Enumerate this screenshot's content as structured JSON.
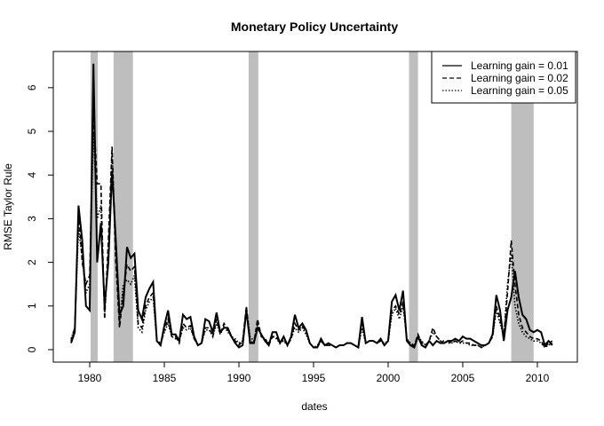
{
  "chart_data": {
    "type": "line",
    "title": "Monetary Policy Uncertainty",
    "x_label": "dates",
    "y_label": "RMSE Taylor Rule",
    "xlim": [
      1977.56,
      2012.68
    ],
    "ylim": [
      -0.285,
      6.83
    ],
    "xticks": [
      1980,
      1985,
      1990,
      1995,
      2000,
      2005,
      2010
    ],
    "yticks": [
      0,
      1,
      2,
      3,
      4,
      5,
      6
    ],
    "legend": "topright",
    "shade_color": "#bebebe",
    "shaded_regions": [
      [
        1980.06,
        1980.54
      ],
      [
        1981.6,
        1982.9
      ],
      [
        1990.65,
        1991.3
      ],
      [
        2001.4,
        2002.0
      ],
      [
        2008.25,
        2009.75
      ]
    ],
    "x": [
      1978.75,
      1979,
      1979.25,
      1979.5,
      1979.75,
      1980,
      1980.25,
      1980.5,
      1980.75,
      1981,
      1981.25,
      1981.5,
      1981.75,
      1982,
      1982.25,
      1982.5,
      1982.75,
      1983,
      1983.25,
      1983.5,
      1983.75,
      1984,
      1984.25,
      1984.5,
      1984.75,
      1985,
      1985.25,
      1985.5,
      1985.75,
      1986,
      1986.25,
      1986.5,
      1986.75,
      1987,
      1987.25,
      1987.5,
      1987.75,
      1988,
      1988.25,
      1988.5,
      1988.75,
      1989,
      1989.25,
      1989.5,
      1989.75,
      1990,
      1990.25,
      1990.5,
      1990.75,
      1991,
      1991.25,
      1991.5,
      1991.75,
      1992,
      1992.25,
      1992.5,
      1992.75,
      1993,
      1993.25,
      1993.5,
      1993.75,
      1994,
      1994.25,
      1994.5,
      1994.75,
      1995,
      1995.25,
      1995.5,
      1995.75,
      1996,
      1996.25,
      1996.5,
      1996.75,
      1997,
      1997.25,
      1997.5,
      1997.75,
      1998,
      1998.25,
      1998.5,
      1998.75,
      1999,
      1999.25,
      1999.5,
      1999.75,
      2000,
      2000.25,
      2000.5,
      2000.75,
      2001,
      2001.25,
      2001.5,
      2001.75,
      2002,
      2002.25,
      2002.5,
      2002.75,
      2003,
      2003.25,
      2003.5,
      2003.75,
      2004,
      2004.25,
      2004.5,
      2004.75,
      2005,
      2005.25,
      2005.5,
      2005.75,
      2006,
      2006.25,
      2006.5,
      2006.75,
      2007,
      2007.25,
      2007.5,
      2007.75,
      2008,
      2008.25,
      2008.5,
      2008.75,
      2009,
      2009.25,
      2009.5,
      2009.75,
      2010,
      2010.25,
      2010.5,
      2010.75,
      2011
    ],
    "series": [
      {
        "name": "Learning gain = 0.01",
        "color": "#000000",
        "dash": "solid",
        "width": 2,
        "values": [
          0.15,
          0.4,
          3.3,
          2.5,
          1.0,
          0.9,
          6.55,
          2.0,
          2.9,
          1.0,
          2.0,
          4.1,
          2.5,
          0.8,
          1.0,
          2.35,
          2.1,
          2.2,
          0.9,
          0.7,
          1.2,
          1.4,
          1.55,
          0.2,
          0.1,
          0.55,
          0.9,
          0.35,
          0.35,
          0.2,
          0.8,
          0.7,
          0.75,
          0.3,
          0.1,
          0.15,
          0.7,
          0.65,
          0.4,
          0.85,
          0.4,
          0.5,
          0.5,
          0.3,
          0.15,
          0.05,
          0.1,
          0.9,
          0.15,
          0.15,
          0.5,
          0.35,
          0.2,
          0.1,
          0.4,
          0.4,
          0.15,
          0.3,
          0.1,
          0.3,
          0.8,
          0.5,
          0.6,
          0.45,
          0.15,
          0.05,
          0.05,
          0.25,
          0.1,
          0.15,
          0.1,
          0.05,
          0.1,
          0.1,
          0.15,
          0.15,
          0.1,
          0.05,
          0.75,
          0.15,
          0.2,
          0.2,
          0.15,
          0.25,
          0.1,
          0.2,
          1.1,
          1.25,
          0.9,
          1.35,
          0.2,
          0.1,
          0.05,
          0.3,
          0.1,
          0.05,
          0.2,
          0.1,
          0.2,
          0.15,
          0.15,
          0.2,
          0.2,
          0.25,
          0.2,
          0.3,
          0.25,
          0.25,
          0.2,
          0.15,
          0.1,
          0.1,
          0.15,
          0.35,
          1.25,
          0.9,
          0.2,
          0.9,
          1.2,
          1.8,
          1.2,
          0.8,
          0.7,
          0.45,
          0.4,
          0.45,
          0.4,
          0.1,
          0.2,
          0.1
        ]
      },
      {
        "name": "Learning gain = 0.02",
        "color": "#000000",
        "dash": "dashed",
        "width": 1.6,
        "values": [
          0.2,
          0.5,
          3.2,
          2.0,
          1.5,
          1.7,
          5.5,
          3.8,
          3.8,
          0.7,
          2.5,
          4.65,
          2.0,
          0.5,
          1.3,
          1.95,
          1.8,
          1.9,
          0.6,
          0.5,
          1.0,
          1.2,
          1.3,
          0.2,
          0.1,
          0.45,
          0.7,
          0.3,
          0.3,
          0.15,
          0.6,
          0.5,
          0.55,
          0.25,
          0.1,
          0.15,
          0.5,
          0.5,
          0.3,
          0.7,
          0.35,
          0.6,
          0.45,
          0.3,
          0.2,
          0.1,
          0.2,
          1.0,
          0.2,
          0.15,
          0.7,
          0.3,
          0.25,
          0.1,
          0.3,
          0.3,
          0.15,
          0.25,
          0.1,
          0.25,
          0.6,
          0.45,
          0.55,
          0.4,
          0.15,
          0.05,
          0.05,
          0.2,
          0.1,
          0.1,
          0.1,
          0.05,
          0.1,
          0.1,
          0.15,
          0.15,
          0.1,
          0.05,
          0.6,
          0.15,
          0.2,
          0.2,
          0.15,
          0.2,
          0.1,
          0.2,
          0.9,
          1.0,
          0.8,
          1.1,
          0.25,
          0.1,
          0.1,
          0.35,
          0.15,
          0.1,
          0.2,
          0.5,
          0.3,
          0.2,
          0.15,
          0.2,
          0.15,
          0.2,
          0.15,
          0.2,
          0.15,
          0.15,
          0.1,
          0.1,
          0.05,
          0.1,
          0.15,
          0.3,
          1.0,
          0.7,
          0.3,
          1.3,
          2.5,
          1.5,
          0.8,
          0.5,
          0.4,
          0.3,
          0.25,
          0.25,
          0.2,
          0.05,
          0.15,
          0.2
        ]
      },
      {
        "name": "Learning gain = 0.05",
        "color": "#000000",
        "dash": "dotted",
        "width": 1.6,
        "values": [
          0.25,
          0.5,
          2.8,
          2.1,
          1.3,
          1.5,
          5.0,
          3.0,
          3.3,
          0.8,
          2.2,
          4.6,
          2.2,
          0.6,
          1.5,
          1.6,
          1.5,
          1.7,
          0.5,
          0.4,
          0.9,
          1.1,
          1.2,
          0.2,
          0.15,
          0.4,
          0.6,
          0.3,
          0.25,
          0.2,
          0.5,
          0.45,
          0.5,
          0.25,
          0.1,
          0.15,
          0.45,
          0.45,
          0.3,
          0.6,
          0.35,
          0.55,
          0.4,
          0.3,
          0.25,
          0.15,
          0.2,
          0.95,
          0.3,
          0.2,
          0.6,
          0.3,
          0.25,
          0.15,
          0.3,
          0.25,
          0.15,
          0.2,
          0.1,
          0.25,
          0.5,
          0.4,
          0.5,
          0.35,
          0.15,
          0.05,
          0.1,
          0.2,
          0.1,
          0.1,
          0.1,
          0.05,
          0.1,
          0.1,
          0.15,
          0.15,
          0.1,
          0.05,
          0.5,
          0.15,
          0.2,
          0.2,
          0.15,
          0.2,
          0.15,
          0.2,
          0.8,
          0.95,
          0.7,
          1.0,
          0.25,
          0.15,
          0.1,
          0.3,
          0.2,
          0.1,
          0.2,
          0.4,
          0.3,
          0.2,
          0.2,
          0.15,
          0.15,
          0.2,
          0.15,
          0.15,
          0.15,
          0.1,
          0.1,
          0.1,
          0.05,
          0.1,
          0.15,
          0.3,
          0.9,
          0.6,
          0.3,
          1.5,
          2.2,
          1.0,
          0.6,
          0.4,
          0.3,
          0.25,
          0.2,
          0.2,
          0.15,
          0.05,
          0.1,
          0.15
        ]
      }
    ]
  }
}
